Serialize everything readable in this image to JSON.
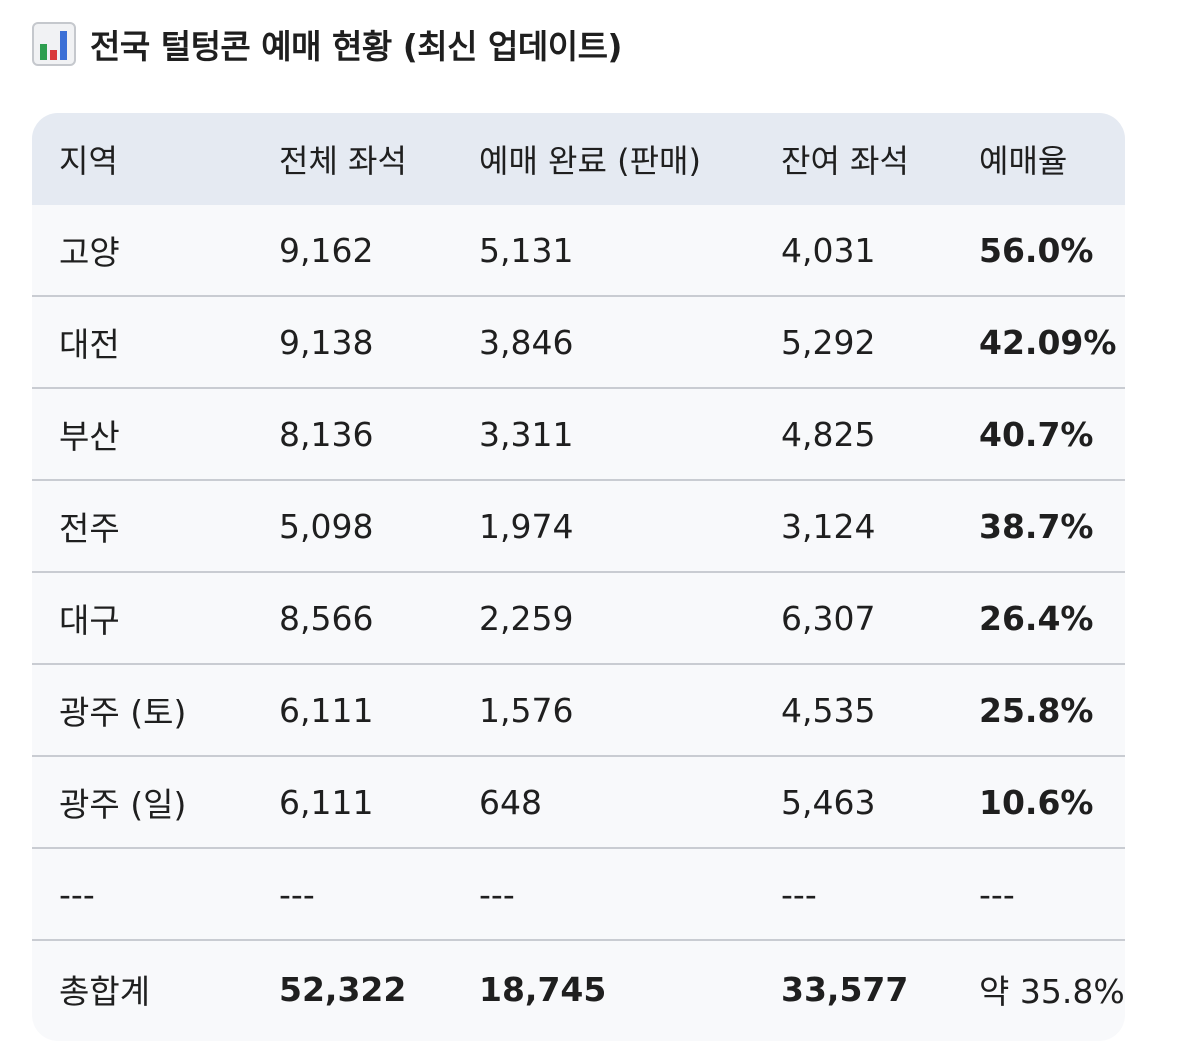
{
  "title": "전국 털텅콘 예매 현황 (최신 업데이트)",
  "title_icon": "bar-chart-emoji",
  "table": {
    "headers": [
      "지역",
      "전체 좌석",
      "예매 완료 (판매)",
      "잔여 좌석",
      "예매율"
    ],
    "rows": [
      [
        "고양",
        "9,162",
        "5,131",
        "4,031",
        "56.0%"
      ],
      [
        "대전",
        "9,138",
        "3,846",
        "5,292",
        "42.09%"
      ],
      [
        "부산",
        "8,136",
        "3,311",
        "4,825",
        "40.7%"
      ],
      [
        "전주",
        "5,098",
        "1,974",
        "3,124",
        "38.7%"
      ],
      [
        "대구",
        "8,566",
        "2,259",
        "6,307",
        "26.4%"
      ],
      [
        "광주 (토)",
        "6,111",
        "1,576",
        "4,535",
        "25.8%"
      ],
      [
        "광주 (일)",
        "6,111",
        "648",
        "5,463",
        "10.6%"
      ],
      [
        "---",
        "---",
        "---",
        "---",
        "---"
      ],
      [
        "총합계",
        "52,322",
        "18,745",
        "33,577",
        "약 35.8%"
      ]
    ]
  },
  "colors": {
    "header_bg": "#e5eaf2",
    "body_bg": "#f8f9fb",
    "divider": "#c9ccd2",
    "text": "#1f1f1f"
  }
}
